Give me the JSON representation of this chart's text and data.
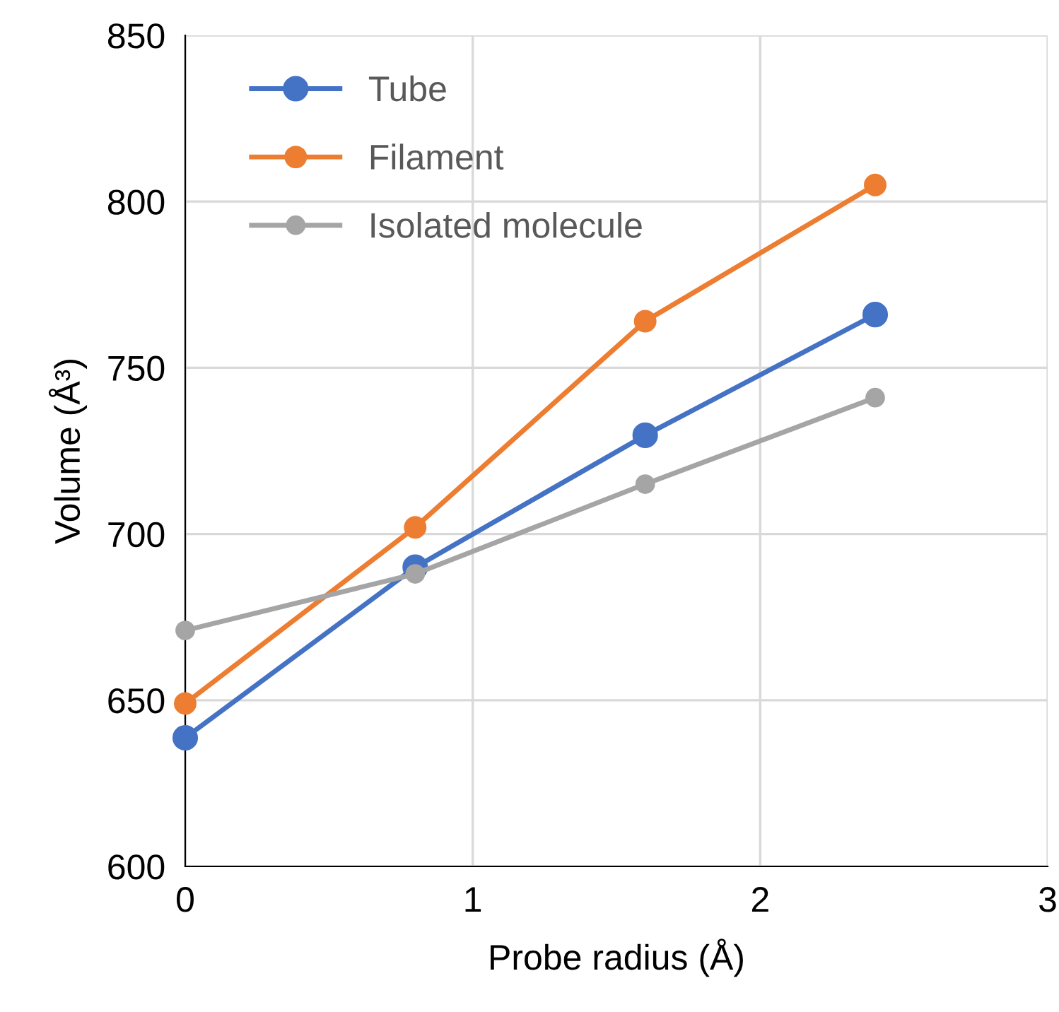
{
  "chart_data": {
    "type": "line",
    "xlabel": "Probe radius (Å)",
    "ylabel": "Volume (Å³)",
    "x": [
      0,
      0.8,
      1.6,
      2.4
    ],
    "series": [
      {
        "name": "Tube",
        "color": "#4472c4",
        "values": [
          638.7,
          690,
          729.7,
          766
        ]
      },
      {
        "name": "Filament",
        "color": "#ed7d31",
        "values": [
          649,
          702,
          764,
          805
        ]
      },
      {
        "name": "Isolated molecule",
        "color": "#a5a5a5",
        "values": [
          671,
          688,
          715,
          741
        ]
      }
    ],
    "xlim": [
      0,
      3
    ],
    "xticks": [
      0,
      1,
      2,
      3
    ],
    "ylim": [
      600,
      850
    ],
    "yticks": [
      600,
      650,
      700,
      750,
      800,
      850
    ],
    "grid": true,
    "legend": "top left",
    "marker": "circle",
    "line_style": "solid"
  }
}
